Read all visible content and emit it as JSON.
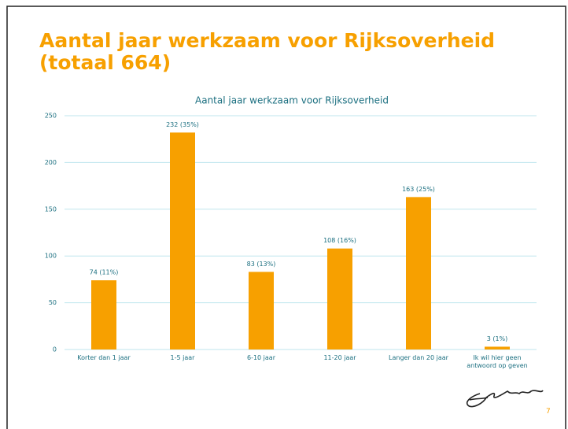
{
  "title": "Aantal jaar werkzaam voor Rijksoverheid (totaal 664)",
  "page_number": "7",
  "chart_data": {
    "type": "bar",
    "title": "Aantal jaar werkzaam voor Rijksoverheid",
    "categories": [
      "Korter dan 1 jaar",
      "1-5 jaar",
      "6-10 jaar",
      "11-20 jaar",
      "Langer dan 20 jaar",
      "Ik wil hier geen antwoord op geven"
    ],
    "values": [
      74,
      232,
      83,
      108,
      163,
      3
    ],
    "value_labels": [
      "74 (11%)",
      "232 (35%)",
      "83 (13%)",
      "108 (16%)",
      "163 (25%)",
      "3 (1%)"
    ],
    "color": "#f7a000",
    "ylim": [
      0,
      250
    ],
    "yticks": [
      0,
      50,
      100,
      150,
      200,
      250
    ],
    "grid": true
  }
}
